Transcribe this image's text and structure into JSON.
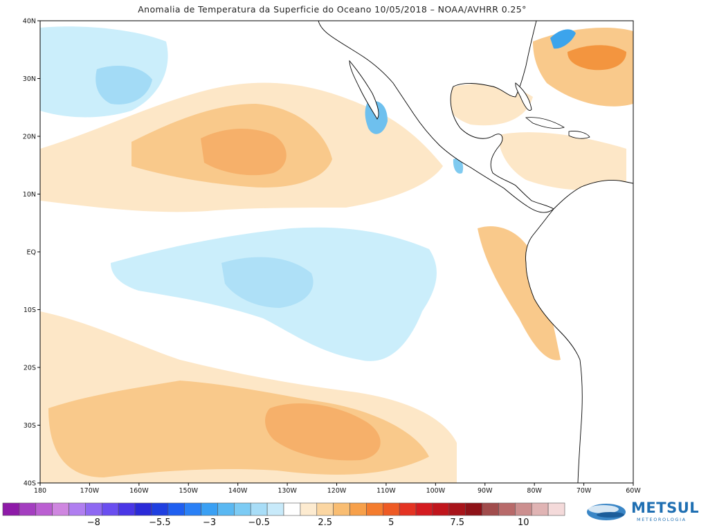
{
  "title": "Anomalia de Temperatura da Superficie do Oceano 10/05/2018 – NOAA/AVHRR 0.25°",
  "map": {
    "lat_range": [
      -40,
      40
    ],
    "lon_range": [
      -180,
      -60
    ],
    "lat_ticks": [
      "40N",
      "30N",
      "20N",
      "10N",
      "EQ",
      "10S",
      "20S",
      "30S",
      "40S"
    ],
    "lon_ticks": [
      "180",
      "170W",
      "160W",
      "150W",
      "140W",
      "130W",
      "120W",
      "110W",
      "100W",
      "90W",
      "80W",
      "70W",
      "60W"
    ]
  },
  "colorbar": {
    "labels": [
      "−8",
      "−5.5",
      "−3",
      "−0.5",
      "2.5",
      "5",
      "7.5",
      "10"
    ],
    "colors": [
      "#8e1aa8",
      "#a43ec0",
      "#bb5fd2",
      "#cf86e0",
      "#b07ef0",
      "#8e68f2",
      "#6a4ef0",
      "#4a36e6",
      "#2b2ad8",
      "#1f3fe0",
      "#1f5ff0",
      "#2a80f6",
      "#3aa0f4",
      "#5ab8f2",
      "#7ccbf4",
      "#a8ddf7",
      "#c8eafa",
      "#ffffff",
      "#fdebd0",
      "#fbd6a2",
      "#f9bd72",
      "#f7a04a",
      "#f47c2e",
      "#ee5a24",
      "#e43322",
      "#d41b20",
      "#c0151c",
      "#a8141a",
      "#8e1218",
      "#a14c4c",
      "#b86a6a",
      "#cc8f8f",
      "#e0b4b4",
      "#f4dada"
    ]
  },
  "logo": {
    "text": "METSUL",
    "sub": "METEOROLOGIA"
  }
}
